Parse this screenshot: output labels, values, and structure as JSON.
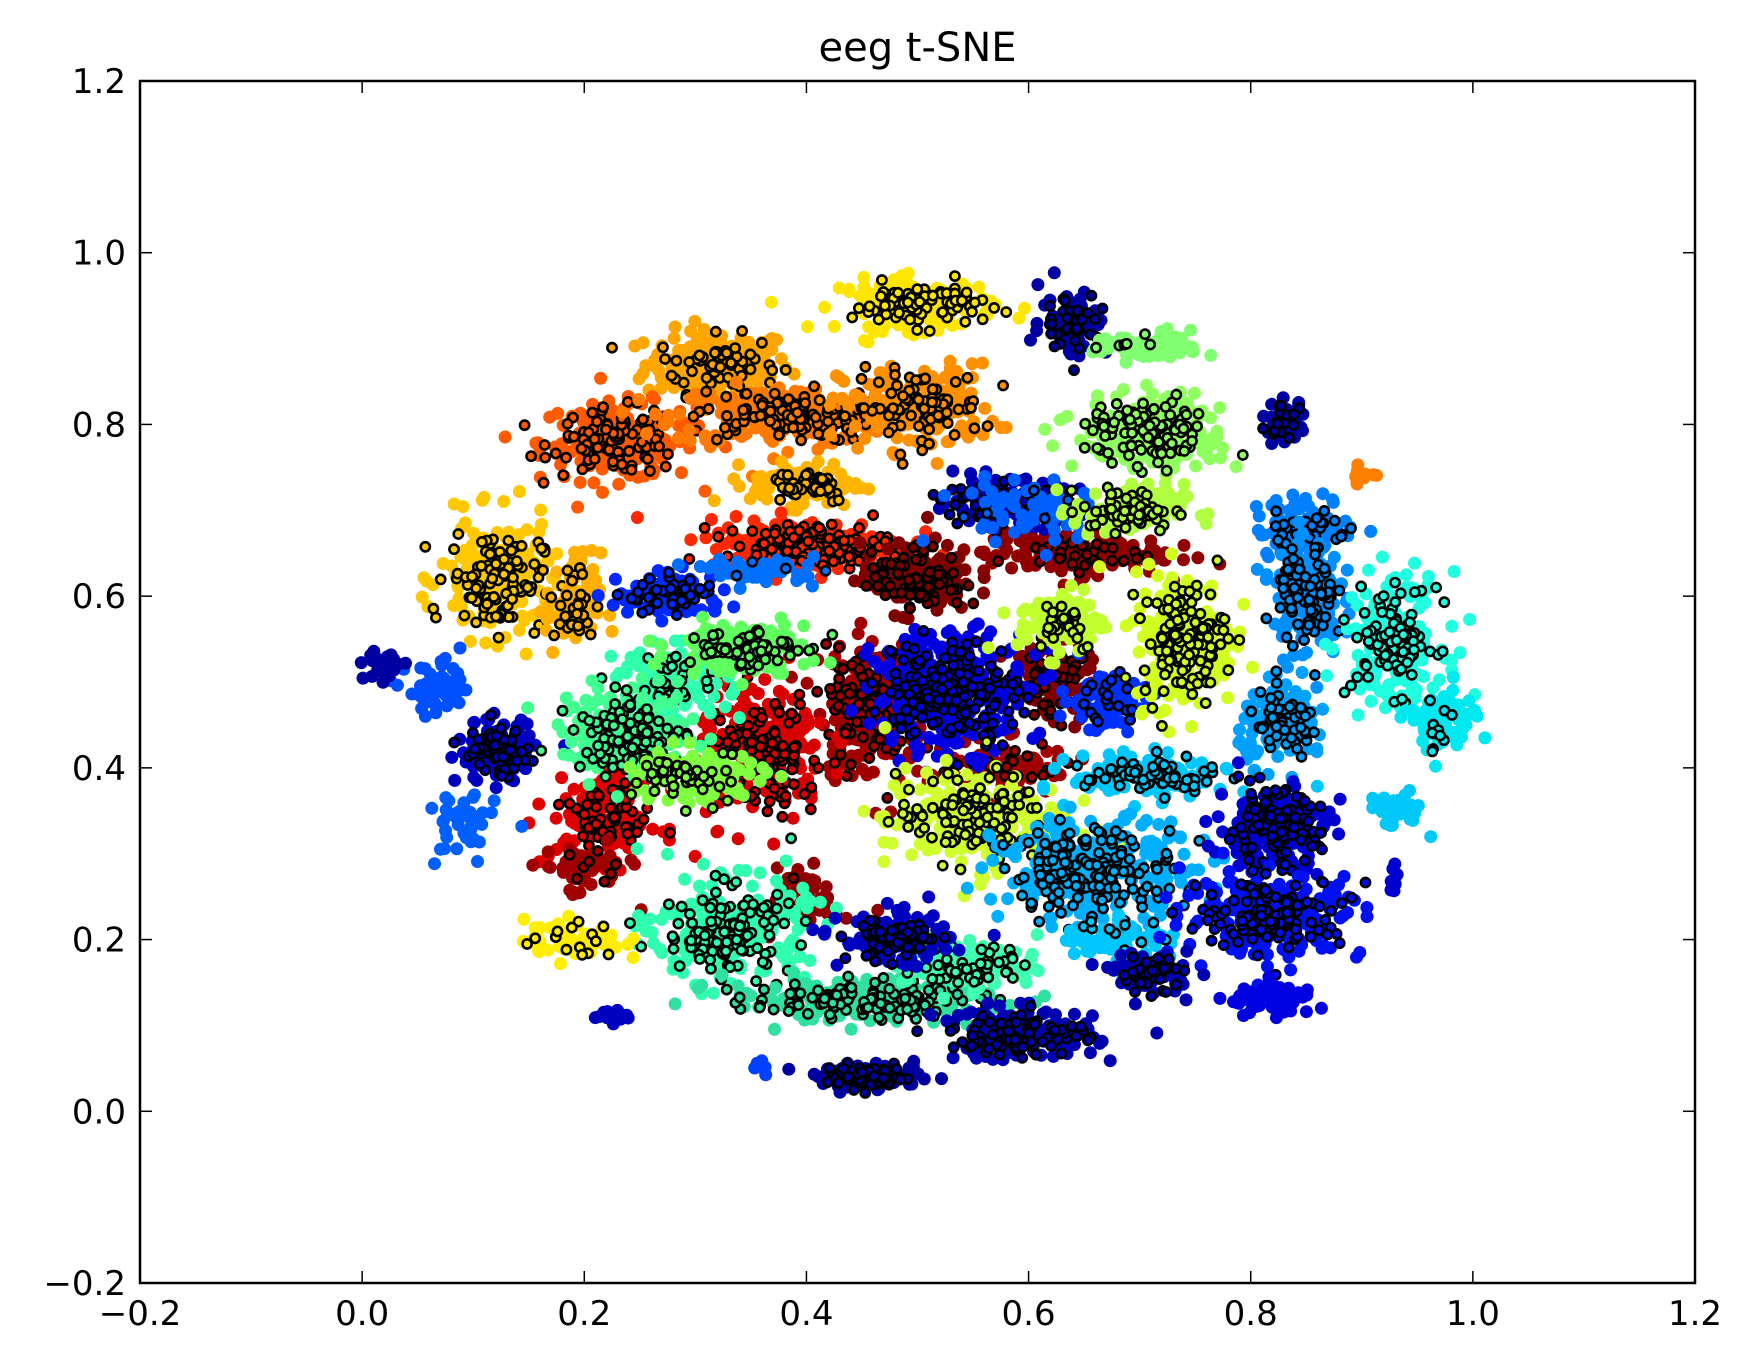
{
  "chart_data": {
    "type": "scatter",
    "title": "eeg t-SNE",
    "xlabel": "",
    "ylabel": "",
    "xlim": [
      -0.2,
      1.2
    ],
    "ylim": [
      -0.2,
      1.2
    ],
    "x_ticks": [
      -0.2,
      0.0,
      0.2,
      0.4,
      0.6,
      0.8,
      1.0,
      1.2
    ],
    "y_ticks": [
      -0.2,
      0.0,
      0.2,
      0.4,
      0.6,
      0.8,
      1.0,
      1.2
    ],
    "x_tick_labels": [
      "−0.2",
      "0.0",
      "0.2",
      "0.4",
      "0.6",
      "0.8",
      "1.0",
      "1.2"
    ],
    "y_tick_labels": [
      "−0.2",
      "0.0",
      "0.2",
      "0.4",
      "0.6",
      "0.8",
      "1.0",
      "1.2"
    ],
    "grid": false,
    "colormap": "jet",
    "colors": {
      "background": "#ffffff",
      "axes": "#000000",
      "highlight_edge": "#000000"
    },
    "clusters": [
      {
        "cx": 0.32,
        "cy": 0.87,
        "rx": 0.065,
        "ry": 0.04,
        "color": "#ffa500",
        "n": 160,
        "hl": 0.45
      },
      {
        "cx": 0.23,
        "cy": 0.78,
        "rx": 0.07,
        "ry": 0.045,
        "color": "#ff5a00",
        "n": 180,
        "hl": 0.7
      },
      {
        "cx": 0.38,
        "cy": 0.81,
        "rx": 0.1,
        "ry": 0.035,
        "color": "#ff7a00",
        "n": 220,
        "hl": 0.55
      },
      {
        "cx": 0.5,
        "cy": 0.82,
        "rx": 0.07,
        "ry": 0.05,
        "color": "#ff9000",
        "n": 150,
        "hl": 0.7
      },
      {
        "cx": 0.5,
        "cy": 0.94,
        "rx": 0.07,
        "ry": 0.03,
        "color": "#ffe600",
        "n": 120,
        "hl": 0.85
      },
      {
        "cx": 0.12,
        "cy": 0.62,
        "rx": 0.05,
        "ry": 0.07,
        "color": "#ffc800",
        "n": 160,
        "hl": 0.8
      },
      {
        "cx": 0.19,
        "cy": 0.59,
        "rx": 0.025,
        "ry": 0.06,
        "color": "#ffb000",
        "n": 60,
        "hl": 0.6
      },
      {
        "cx": 0.4,
        "cy": 0.73,
        "rx": 0.05,
        "ry": 0.025,
        "color": "#ffb400",
        "n": 90,
        "hl": 0.6
      },
      {
        "cx": 0.4,
        "cy": 0.66,
        "rx": 0.09,
        "ry": 0.03,
        "color": "#ff2800",
        "n": 200,
        "hl": 0.65
      },
      {
        "cx": 0.64,
        "cy": 0.65,
        "rx": 0.08,
        "ry": 0.025,
        "color": "#900000",
        "n": 160,
        "hl": 0.25
      },
      {
        "cx": 0.5,
        "cy": 0.62,
        "rx": 0.05,
        "ry": 0.04,
        "color": "#800000",
        "n": 120,
        "hl": 0.8
      },
      {
        "cx": 0.46,
        "cy": 0.47,
        "rx": 0.05,
        "ry": 0.08,
        "color": "#a00000",
        "n": 180,
        "hl": 0.8
      },
      {
        "cx": 0.36,
        "cy": 0.42,
        "rx": 0.06,
        "ry": 0.08,
        "color": "#d80000",
        "n": 200,
        "hl": 0.7
      },
      {
        "cx": 0.22,
        "cy": 0.34,
        "rx": 0.05,
        "ry": 0.05,
        "color": "#e00000",
        "n": 120,
        "hl": 0.6
      },
      {
        "cx": 0.2,
        "cy": 0.28,
        "rx": 0.04,
        "ry": 0.03,
        "color": "#a00000",
        "n": 50,
        "hl": 0.2
      },
      {
        "cx": 0.4,
        "cy": 0.25,
        "rx": 0.03,
        "ry": 0.035,
        "color": "#900000",
        "n": 50,
        "hl": 0.05
      },
      {
        "cx": 0.58,
        "cy": 0.4,
        "rx": 0.07,
        "ry": 0.03,
        "color": "#a00000",
        "n": 90,
        "hl": 0.3
      },
      {
        "cx": 0.62,
        "cy": 0.5,
        "rx": 0.04,
        "ry": 0.05,
        "color": "#800000",
        "n": 80,
        "hl": 0.7
      },
      {
        "cx": 0.53,
        "cy": 0.49,
        "rx": 0.07,
        "ry": 0.07,
        "color": "#0000e0",
        "n": 260,
        "hl": 0.8
      },
      {
        "cx": 0.67,
        "cy": 0.48,
        "rx": 0.04,
        "ry": 0.035,
        "color": "#0030ff",
        "n": 80,
        "hl": 0.3
      },
      {
        "cx": 0.58,
        "cy": 0.71,
        "rx": 0.065,
        "ry": 0.025,
        "color": "#0000b0",
        "n": 120,
        "hl": 0.75
      },
      {
        "cx": 0.6,
        "cy": 0.7,
        "rx": 0.08,
        "ry": 0.04,
        "color": "#0060ff",
        "n": 60,
        "hl": 0.1
      },
      {
        "cx": 0.64,
        "cy": 0.92,
        "rx": 0.03,
        "ry": 0.04,
        "color": "#0000a0",
        "n": 70,
        "hl": 0.6
      },
      {
        "cx": 0.28,
        "cy": 0.6,
        "rx": 0.05,
        "ry": 0.025,
        "color": "#0028ff",
        "n": 90,
        "hl": 0.6
      },
      {
        "cx": 0.36,
        "cy": 0.63,
        "rx": 0.05,
        "ry": 0.015,
        "color": "#0070ff",
        "n": 50,
        "hl": 0.1
      },
      {
        "cx": 0.12,
        "cy": 0.42,
        "rx": 0.035,
        "ry": 0.035,
        "color": "#0000c0",
        "n": 100,
        "hl": 0.7
      },
      {
        "cx": 0.07,
        "cy": 0.49,
        "rx": 0.03,
        "ry": 0.03,
        "color": "#0050ff",
        "n": 60,
        "hl": 0.0
      },
      {
        "cx": 0.02,
        "cy": 0.52,
        "rx": 0.018,
        "ry": 0.018,
        "color": "#0000a0",
        "n": 30,
        "hl": 0.0
      },
      {
        "cx": 0.09,
        "cy": 0.33,
        "rx": 0.03,
        "ry": 0.045,
        "color": "#0060ff",
        "n": 40,
        "hl": 0.0
      },
      {
        "cx": 0.22,
        "cy": 0.11,
        "rx": 0.02,
        "ry": 0.01,
        "color": "#0000c0",
        "n": 16,
        "hl": 0.0
      },
      {
        "cx": 0.28,
        "cy": 0.5,
        "rx": 0.05,
        "ry": 0.04,
        "color": "#30ffb0",
        "n": 110,
        "hl": 0.35
      },
      {
        "cx": 0.24,
        "cy": 0.44,
        "rx": 0.06,
        "ry": 0.05,
        "color": "#40ff90",
        "n": 150,
        "hl": 0.75
      },
      {
        "cx": 0.34,
        "cy": 0.54,
        "rx": 0.06,
        "ry": 0.03,
        "color": "#60ff60",
        "n": 110,
        "hl": 0.7
      },
      {
        "cx": 0.3,
        "cy": 0.39,
        "rx": 0.06,
        "ry": 0.035,
        "color": "#80ff40",
        "n": 100,
        "hl": 0.6
      },
      {
        "cx": 0.33,
        "cy": 0.21,
        "rx": 0.07,
        "ry": 0.06,
        "color": "#30ffb0",
        "n": 190,
        "hl": 0.75
      },
      {
        "cx": 0.45,
        "cy": 0.13,
        "rx": 0.12,
        "ry": 0.025,
        "color": "#30e0a0",
        "n": 190,
        "hl": 0.7
      },
      {
        "cx": 0.55,
        "cy": 0.17,
        "rx": 0.06,
        "ry": 0.03,
        "color": "#40ffb0",
        "n": 90,
        "hl": 0.6
      },
      {
        "cx": 0.71,
        "cy": 0.79,
        "rx": 0.065,
        "ry": 0.045,
        "color": "#90ff60",
        "n": 170,
        "hl": 0.75
      },
      {
        "cx": 0.71,
        "cy": 0.89,
        "rx": 0.05,
        "ry": 0.018,
        "color": "#80ff70",
        "n": 70,
        "hl": 0.1
      },
      {
        "cx": 0.69,
        "cy": 0.7,
        "rx": 0.05,
        "ry": 0.03,
        "color": "#b0ff40",
        "n": 90,
        "hl": 0.8
      },
      {
        "cx": 0.63,
        "cy": 0.57,
        "rx": 0.04,
        "ry": 0.04,
        "color": "#c0ff30",
        "n": 80,
        "hl": 0.4
      },
      {
        "cx": 0.74,
        "cy": 0.55,
        "rx": 0.045,
        "ry": 0.08,
        "color": "#d0ff20",
        "n": 180,
        "hl": 0.8
      },
      {
        "cx": 0.55,
        "cy": 0.34,
        "rx": 0.08,
        "ry": 0.06,
        "color": "#d0ff30",
        "n": 190,
        "hl": 0.75
      },
      {
        "cx": 0.19,
        "cy": 0.2,
        "rx": 0.045,
        "ry": 0.025,
        "color": "#ffee00",
        "n": 60,
        "hl": 0.3
      },
      {
        "cx": 0.85,
        "cy": 0.68,
        "rx": 0.045,
        "ry": 0.035,
        "color": "#0080ff",
        "n": 100,
        "hl": 0.3
      },
      {
        "cx": 0.85,
        "cy": 0.6,
        "rx": 0.03,
        "ry": 0.07,
        "color": "#0090ff",
        "n": 140,
        "hl": 0.75
      },
      {
        "cx": 0.83,
        "cy": 0.45,
        "rx": 0.04,
        "ry": 0.045,
        "color": "#00a0ff",
        "n": 100,
        "hl": 0.7
      },
      {
        "cx": 0.93,
        "cy": 0.55,
        "rx": 0.045,
        "ry": 0.075,
        "color": "#20ffe0",
        "n": 160,
        "hl": 0.65
      },
      {
        "cx": 0.97,
        "cy": 0.45,
        "rx": 0.03,
        "ry": 0.04,
        "color": "#00e8f0",
        "n": 70,
        "hl": 0.2
      },
      {
        "cx": 0.93,
        "cy": 0.35,
        "rx": 0.025,
        "ry": 0.02,
        "color": "#00c8f8",
        "n": 40,
        "hl": 0.0
      },
      {
        "cx": 0.71,
        "cy": 0.39,
        "rx": 0.07,
        "ry": 0.025,
        "color": "#00c8ff",
        "n": 130,
        "hl": 0.6
      },
      {
        "cx": 0.66,
        "cy": 0.28,
        "rx": 0.09,
        "ry": 0.06,
        "color": "#00b0ff",
        "n": 230,
        "hl": 0.8
      },
      {
        "cx": 0.68,
        "cy": 0.2,
        "rx": 0.05,
        "ry": 0.03,
        "color": "#00c8ff",
        "n": 60,
        "hl": 0.2
      },
      {
        "cx": 0.82,
        "cy": 0.33,
        "rx": 0.05,
        "ry": 0.05,
        "color": "#0000d0",
        "n": 170,
        "hl": 0.85
      },
      {
        "cx": 0.82,
        "cy": 0.23,
        "rx": 0.08,
        "ry": 0.05,
        "color": "#0010f0",
        "n": 200,
        "hl": 0.7
      },
      {
        "cx": 0.82,
        "cy": 0.13,
        "rx": 0.04,
        "ry": 0.02,
        "color": "#0000e0",
        "n": 60,
        "hl": 0.0
      },
      {
        "cx": 0.71,
        "cy": 0.16,
        "rx": 0.035,
        "ry": 0.025,
        "color": "#0000b0",
        "n": 60,
        "hl": 0.8
      },
      {
        "cx": 0.83,
        "cy": 0.8,
        "rx": 0.02,
        "ry": 0.025,
        "color": "#0000a0",
        "n": 30,
        "hl": 0.7
      },
      {
        "cx": 0.48,
        "cy": 0.2,
        "rx": 0.05,
        "ry": 0.03,
        "color": "#0000c0",
        "n": 100,
        "hl": 0.85
      },
      {
        "cx": 0.59,
        "cy": 0.09,
        "rx": 0.07,
        "ry": 0.03,
        "color": "#0000b0",
        "n": 130,
        "hl": 0.8
      },
      {
        "cx": 0.46,
        "cy": 0.04,
        "rx": 0.05,
        "ry": 0.015,
        "color": "#0000a0",
        "n": 80,
        "hl": 0.9
      },
      {
        "cx": 0.36,
        "cy": 0.05,
        "rx": 0.01,
        "ry": 0.012,
        "color": "#0040ff",
        "n": 8,
        "hl": 0.0
      },
      {
        "cx": 0.9,
        "cy": 0.74,
        "rx": 0.015,
        "ry": 0.01,
        "color": "#ff8000",
        "n": 10,
        "hl": 0.0
      },
      {
        "cx": 0.93,
        "cy": 0.27,
        "rx": 0.008,
        "ry": 0.015,
        "color": "#0000d0",
        "n": 8,
        "hl": 0.0
      }
    ]
  }
}
